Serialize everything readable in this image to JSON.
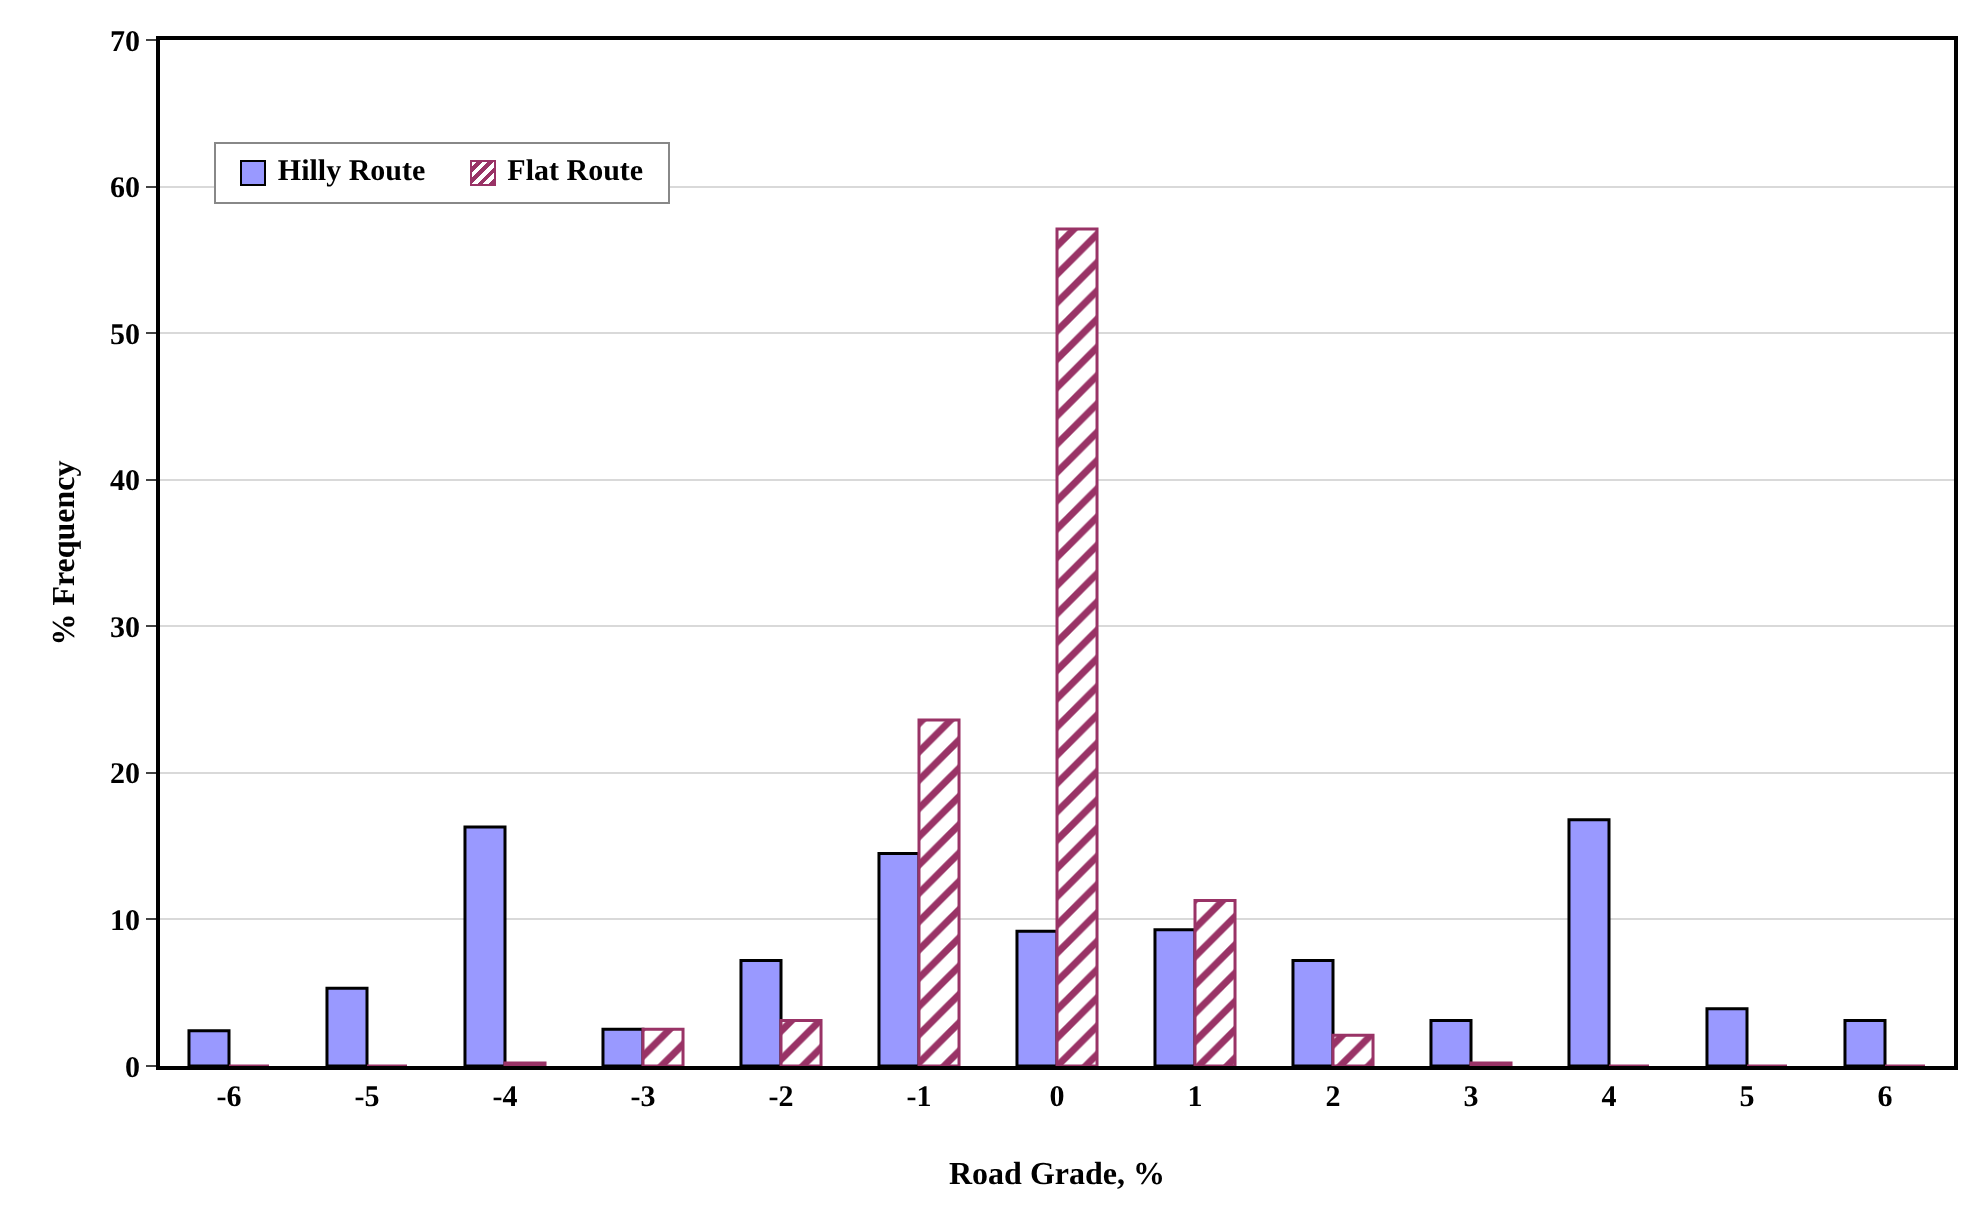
{
  "chart_data": {
    "type": "bar",
    "xlabel": "Road Grade, %",
    "ylabel": "% Frequency",
    "categories": [
      "-6",
      "-5",
      "-4",
      "-3",
      "-2",
      "-1",
      "0",
      "1",
      "2",
      "3",
      "4",
      "5",
      "6"
    ],
    "series": [
      {
        "name": "Hilly Route",
        "color": "#9999ff",
        "values": [
          2.4,
          5.3,
          16.3,
          2.5,
          7.2,
          14.5,
          9.2,
          9.3,
          7.2,
          3.1,
          16.8,
          3.9,
          3.1
        ]
      },
      {
        "name": "Flat Route",
        "color": "#993366",
        "values": [
          0,
          0,
          0.2,
          2.5,
          3.1,
          23.6,
          57.1,
          11.3,
          2.1,
          0.2,
          0,
          0,
          0
        ]
      }
    ],
    "ylim": [
      0,
      70
    ],
    "yticks": [
      0,
      10,
      20,
      30,
      40,
      50,
      60,
      70
    ],
    "grid": "y",
    "legend": "top left"
  }
}
